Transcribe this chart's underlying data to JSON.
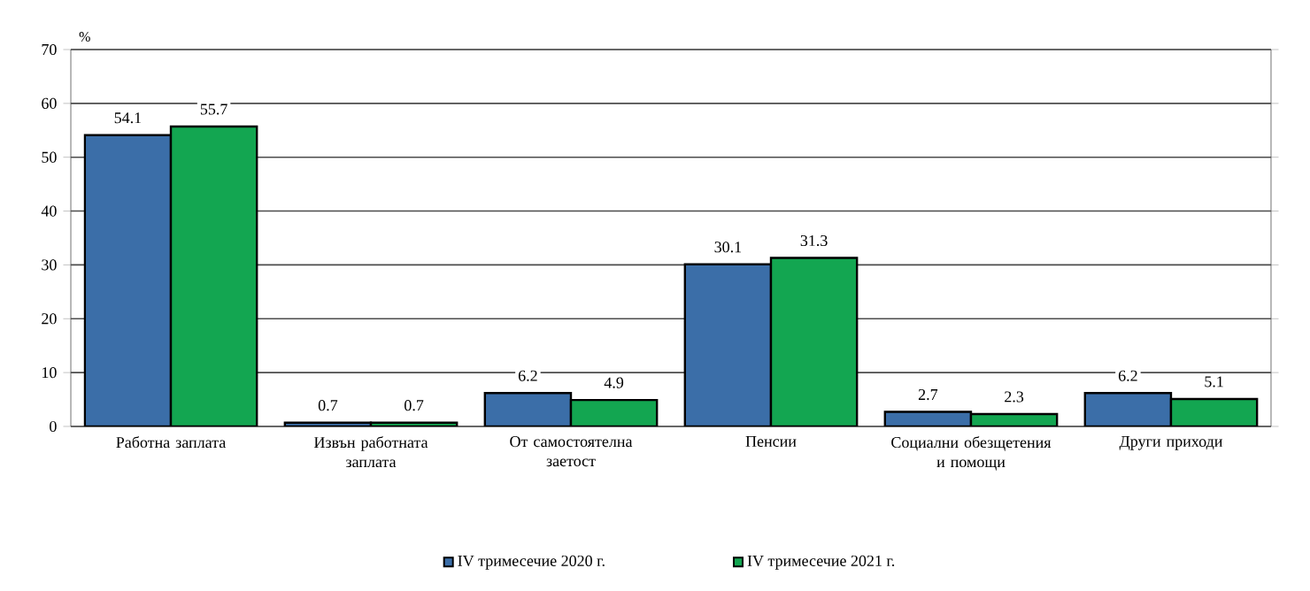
{
  "chart_data": {
    "type": "bar",
    "ylabel": "%",
    "categories": [
      "Работна заплата",
      "Извън работната заплата",
      "От самостоятелна заетост",
      "Пенсии",
      "Социални обезщетения и помощи",
      "Други приходи"
    ],
    "series": [
      {
        "name": "IV  тримесечие 2020 г.",
        "color": "#3b6ea8",
        "values": [
          54.1,
          0.7,
          6.2,
          30.1,
          2.7,
          6.2
        ]
      },
      {
        "name": "IV  тримесечие 2021 г.",
        "color": "#13a651",
        "values": [
          55.7,
          0.7,
          4.9,
          31.3,
          2.3,
          5.1
        ]
      }
    ],
    "ylim": [
      0,
      70
    ],
    "yticks": [
      0,
      10,
      20,
      30,
      40,
      50,
      60,
      70
    ],
    "grid": "y",
    "legend": "bottom",
    "data_labels": true
  }
}
